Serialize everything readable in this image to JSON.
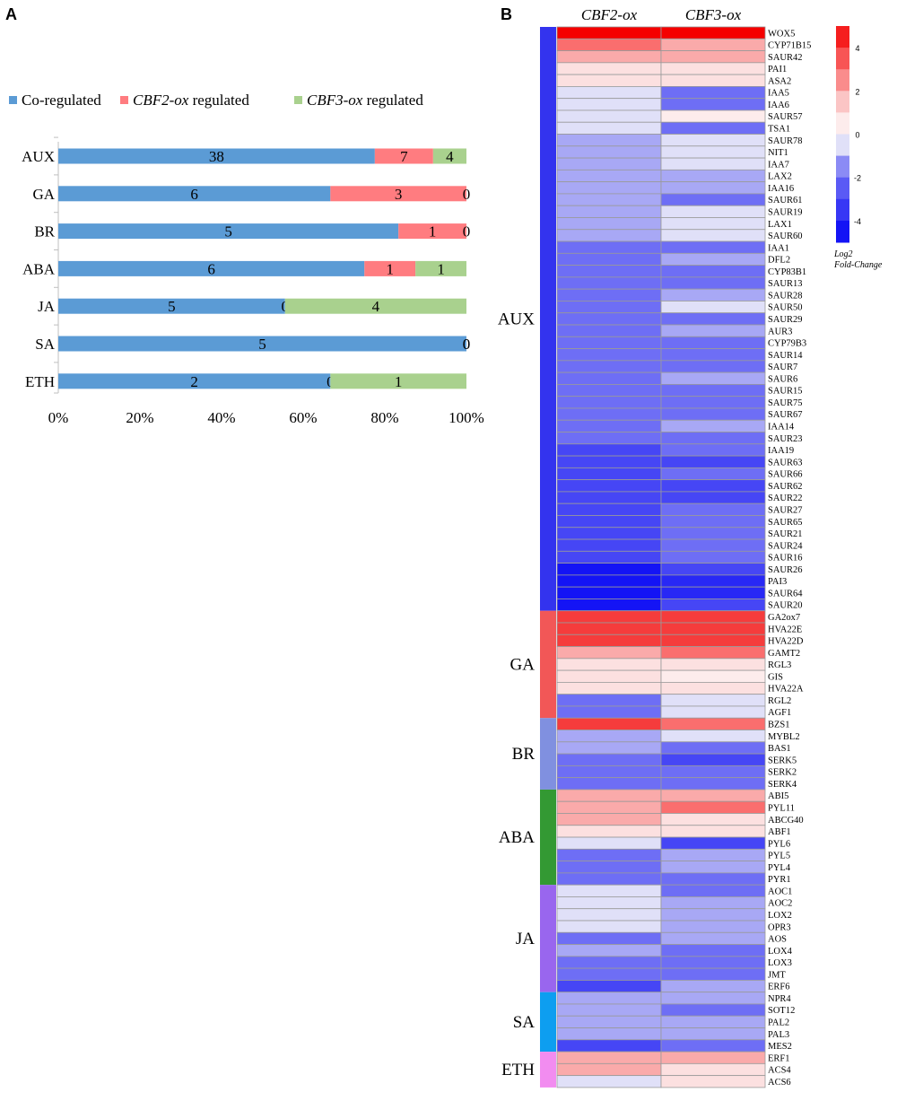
{
  "panels": {
    "a": "A",
    "b": "B"
  },
  "chart_data": [
    {
      "type": "bar",
      "orientation": "horizontal",
      "stacked": true,
      "normalized_percent": true,
      "categories": [
        "AUX",
        "GA",
        "BR",
        "ABA",
        "JA",
        "SA",
        "ETH"
      ],
      "series": [
        {
          "name": "Co-regulated",
          "color": "#5b9bd5",
          "values": [
            38,
            6,
            5,
            6,
            5,
            5,
            2
          ]
        },
        {
          "name": "CBF2-ox regulated",
          "color": "#ff7c80",
          "values": [
            7,
            3,
            1,
            1,
            0,
            0,
            0
          ]
        },
        {
          "name": "CBF3-ox regulated",
          "color": "#a9d18e",
          "values": [
            4,
            0,
            0,
            1,
            4,
            0,
            1
          ]
        }
      ],
      "legend": [
        {
          "prefix": "",
          "italic": "",
          "suffix": "Co-regulated"
        },
        {
          "prefix": "",
          "italic": "CBF2-ox",
          "suffix": " regulated"
        },
        {
          "prefix": "",
          "italic": "CBF3-ox",
          "suffix": " regulated"
        }
      ],
      "xticks": [
        "0%",
        "20%",
        "40%",
        "60%",
        "80%",
        "100%"
      ],
      "xlim": [
        0,
        100
      ],
      "legend_position": "top"
    },
    {
      "type": "heatmap",
      "columns": [
        "CBF2-ox",
        "CBF3-ox"
      ],
      "colorbar": {
        "title1": "Log2",
        "title2": "Fold-Change",
        "ticks": [
          4,
          2,
          0,
          -2,
          -4
        ],
        "range": [
          -5,
          5
        ]
      },
      "groups": [
        {
          "name": "AUX",
          "color": "#3333ee",
          "genes": [
            [
              "WOX5",
              5,
              5
            ],
            [
              "CYP71B15",
              3,
              2
            ],
            [
              "SAUR42",
              2,
              2
            ],
            [
              "PAI1",
              1,
              1
            ],
            [
              "ASA2",
              1,
              1
            ],
            [
              "IAA5",
              -0.5,
              -2
            ],
            [
              "IAA6",
              -0.5,
              -2
            ],
            [
              "SAUR57",
              -0.5,
              0.5
            ],
            [
              "TSA1",
              -0.5,
              -2
            ],
            [
              "SAUR78",
              -1,
              -0.5
            ],
            [
              "NIT1",
              -1,
              -0.5
            ],
            [
              "IAA7",
              -1,
              -0.5
            ],
            [
              "LAX2",
              -1,
              -1
            ],
            [
              "IAA16",
              -1,
              -1
            ],
            [
              "SAUR61",
              -1,
              -2
            ],
            [
              "SAUR19",
              -1,
              -0.5
            ],
            [
              "LAX1",
              -1,
              -0.5
            ],
            [
              "SAUR60",
              -1,
              -0.5
            ],
            [
              "IAA1",
              -2,
              -2
            ],
            [
              "DFL2",
              -2,
              -1
            ],
            [
              "CYP83B1",
              -2,
              -2
            ],
            [
              "SAUR13",
              -2,
              -2
            ],
            [
              "SAUR28",
              -2,
              -1
            ],
            [
              "SAUR50",
              -2,
              -0.5
            ],
            [
              "SAUR29",
              -2,
              -2
            ],
            [
              "AUR3",
              -2,
              -1
            ],
            [
              "CYP79B3",
              -2,
              -2
            ],
            [
              "SAUR14",
              -2,
              -2
            ],
            [
              "SAUR7",
              -2,
              -2
            ],
            [
              "SAUR6",
              -2,
              -1
            ],
            [
              "SAUR15",
              -2,
              -2
            ],
            [
              "SAUR75",
              -2,
              -2
            ],
            [
              "SAUR67",
              -2,
              -2
            ],
            [
              "IAA14",
              -2,
              -1
            ],
            [
              "SAUR23",
              -2,
              -2
            ],
            [
              "IAA19",
              -3,
              -2
            ],
            [
              "SAUR63",
              -3,
              -3
            ],
            [
              "SAUR66",
              -3,
              -2
            ],
            [
              "SAUR62",
              -3,
              -3
            ],
            [
              "SAUR22",
              -3,
              -3
            ],
            [
              "SAUR27",
              -3,
              -2
            ],
            [
              "SAUR65",
              -3,
              -2
            ],
            [
              "SAUR21",
              -3,
              -2
            ],
            [
              "SAUR24",
              -3,
              -2
            ],
            [
              "SAUR16",
              -3,
              -2
            ],
            [
              "SAUR26",
              -4.5,
              -3
            ],
            [
              "PAI3",
              -4.5,
              -4
            ],
            [
              "SAUR64",
              -4.5,
              -4
            ],
            [
              "SAUR20",
              -4.5,
              -3
            ]
          ]
        },
        {
          "name": "GA",
          "color": "#f25757",
          "genes": [
            [
              "GA2ox7",
              4,
              4
            ],
            [
              "HVA22E",
              4,
              4
            ],
            [
              "HVA22D",
              4,
              4
            ],
            [
              "GAMT2",
              2,
              3
            ],
            [
              "RGL3",
              1,
              1
            ],
            [
              "GIS",
              1,
              0.5
            ],
            [
              "HVA22A",
              1,
              1
            ],
            [
              "RGL2",
              -2,
              -0.5
            ],
            [
              "AGF1",
              -2,
              -0.5
            ]
          ]
        },
        {
          "name": "BR",
          "color": "#8090e0",
          "genes": [
            [
              "BZS1",
              4,
              3
            ],
            [
              "MYBL2",
              -1,
              -0.5
            ],
            [
              "BAS1",
              -1,
              -2
            ],
            [
              "SERK5",
              -2,
              -3
            ],
            [
              "SERK2",
              -2,
              -2
            ],
            [
              "SERK4",
              -2,
              -2
            ]
          ]
        },
        {
          "name": "ABA",
          "color": "#339933",
          "genes": [
            [
              "ABI5",
              2,
              2
            ],
            [
              "PYL11",
              2,
              3
            ],
            [
              "ABCG40",
              2,
              1
            ],
            [
              "ABF1",
              1,
              1
            ],
            [
              "PYL6",
              -0.5,
              -3
            ],
            [
              "PYL5",
              -2,
              -1
            ],
            [
              "PYL4",
              -2,
              -1
            ],
            [
              "PYR1",
              -2,
              -2
            ]
          ]
        },
        {
          "name": "JA",
          "color": "#9966ee",
          "genes": [
            [
              "AOC1",
              -0.5,
              -2
            ],
            [
              "AOC2",
              -0.5,
              -1
            ],
            [
              "LOX2",
              -0.5,
              -1
            ],
            [
              "OPR3",
              -0.5,
              -1
            ],
            [
              "AOS",
              -2,
              -1
            ],
            [
              "LOX4",
              -1,
              -2
            ],
            [
              "LOX3",
              -2,
              -2
            ],
            [
              "JMT",
              -2,
              -2
            ],
            [
              "ERF6",
              -3,
              -1
            ]
          ]
        },
        {
          "name": "SA",
          "color": "#0d9ef0",
          "genes": [
            [
              "NPR4",
              -1,
              -1
            ],
            [
              "SOT12",
              -1,
              -2
            ],
            [
              "PAL2",
              -1,
              -1
            ],
            [
              "PAL3",
              -1,
              -1
            ],
            [
              "MES2",
              -3,
              -2
            ]
          ]
        },
        {
          "name": "ETH",
          "color": "#f28cf0",
          "genes": [
            [
              "ERF1",
              2,
              2
            ],
            [
              "ACS4",
              2,
              1
            ],
            [
              "ACS6",
              -0.5,
              1
            ]
          ]
        }
      ]
    }
  ]
}
